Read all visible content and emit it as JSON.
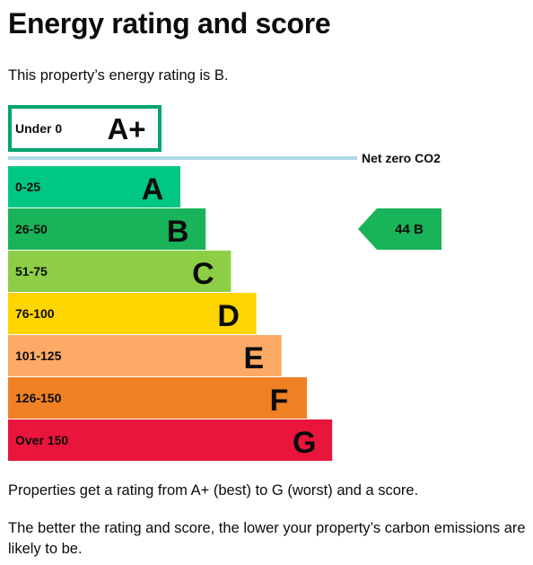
{
  "title": "Energy rating and score",
  "intro": "This property’s energy rating is B.",
  "notes": [
    "Properties get a rating from A+ (best) to G (worst) and a score.",
    "The better the rating and score, the lower your property’s carbon emissions are likely to be."
  ],
  "colors": {
    "A+": "#00a56c",
    "A": "#00c781",
    "B": "#19b459",
    "C": "#8dce46",
    "D": "#ffd500",
    "E": "#fcaa65",
    "F": "#ef8023",
    "G": "#e9153b",
    "net_zero_line": "#add8e6"
  },
  "chart_data": {
    "type": "bar",
    "title": "",
    "top_band": {
      "range_label": "Under 0",
      "rating": "A+",
      "color": "#00a56c"
    },
    "reference_line": {
      "label": "Net zero CO2",
      "color": "#add8e6"
    },
    "bands": [
      {
        "range_label": "0-25",
        "rating": "A",
        "max_score": 25,
        "color": "#00c781"
      },
      {
        "range_label": "26-50",
        "rating": "B",
        "max_score": 50,
        "color": "#19b459"
      },
      {
        "range_label": "51-75",
        "rating": "C",
        "max_score": 75,
        "color": "#8dce46"
      },
      {
        "range_label": "76-100",
        "rating": "D",
        "max_score": 100,
        "color": "#ffd500"
      },
      {
        "range_label": "101-125",
        "rating": "E",
        "max_score": 125,
        "color": "#fcaa65"
      },
      {
        "range_label": "126-150",
        "rating": "F",
        "max_score": 150,
        "color": "#ef8023"
      },
      {
        "range_label": "Over 150",
        "rating": "G",
        "max_score": 175,
        "color": "#e9153b"
      }
    ],
    "current": {
      "score": 44,
      "rating": "B",
      "label": "44 B",
      "color": "#19b459"
    }
  }
}
